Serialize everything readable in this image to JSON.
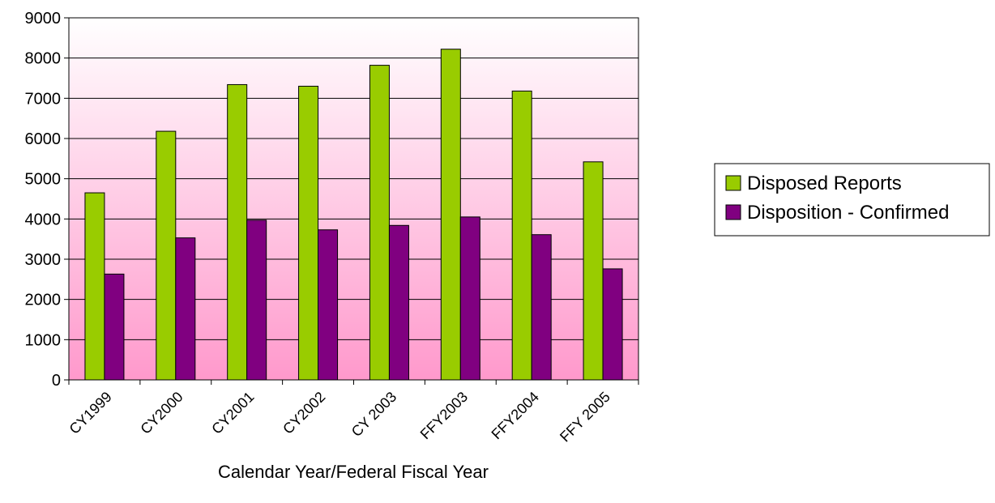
{
  "chart_data": {
    "type": "bar",
    "title": "",
    "xlabel": "Calendar Year/Federal Fiscal Year",
    "ylabel": "",
    "categories": [
      "CY1999",
      "CY2000",
      "CY2001",
      "CY2002",
      "CY 2003",
      "FFY2003",
      "FFY2004",
      "FFY 2005"
    ],
    "series": [
      {
        "name": "Disposed Reports",
        "values": [
          4650,
          6180,
          7340,
          7300,
          7820,
          8220,
          7180,
          5420
        ],
        "color": "#99cc00"
      },
      {
        "name": "Disposition - Confirmed",
        "values": [
          2630,
          3530,
          3970,
          3730,
          3840,
          4050,
          3610,
          2760
        ],
        "color": "#800080"
      }
    ],
    "ylim": [
      0,
      9000
    ],
    "yticks": [
      0,
      1000,
      2000,
      3000,
      4000,
      5000,
      6000,
      7000,
      8000,
      9000
    ],
    "grid": true,
    "legend": "right",
    "plot_background": {
      "top": "#ffffff",
      "bottom": "#ff99cc"
    }
  }
}
